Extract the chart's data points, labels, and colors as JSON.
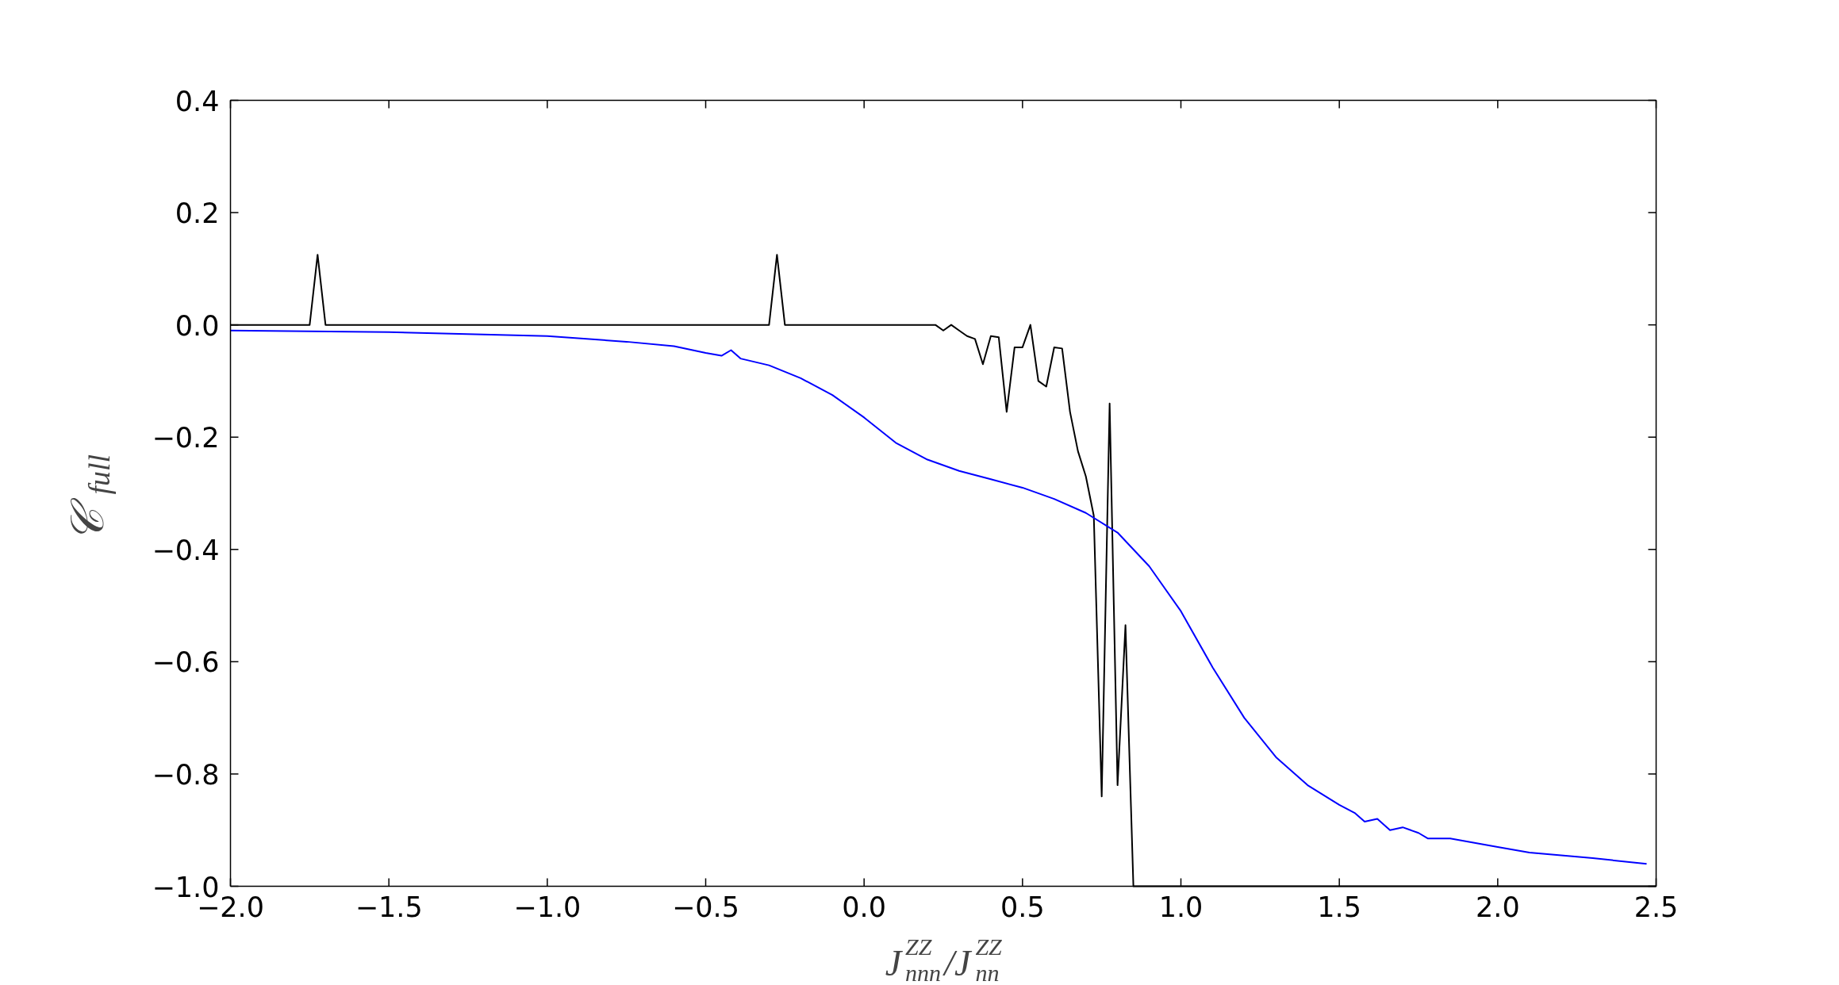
{
  "chart_data": {
    "type": "line",
    "xlabel": "J$^{ZZ}$$_{nnn}$/J$^{ZZ}$$_{nn}$",
    "ylabel": "𝒞$_{full}$",
    "xlim": [
      -2.0,
      2.5
    ],
    "ylim": [
      -1.0,
      0.4
    ],
    "xticks": [
      {
        "value": -2.0,
        "label": "−2.0"
      },
      {
        "value": -1.5,
        "label": "−1.5"
      },
      {
        "value": -1.0,
        "label": "−1.0"
      },
      {
        "value": -0.5,
        "label": "−0.5"
      },
      {
        "value": 0.0,
        "label": "0.0"
      },
      {
        "value": 0.5,
        "label": "0.5"
      },
      {
        "value": 1.0,
        "label": "1.0"
      },
      {
        "value": 1.5,
        "label": "1.5"
      },
      {
        "value": 2.0,
        "label": "2.0"
      },
      {
        "value": 2.5,
        "label": "2.5"
      }
    ],
    "yticks": [
      {
        "value": -1.0,
        "label": "−1.0"
      },
      {
        "value": -0.8,
        "label": "−0.8"
      },
      {
        "value": -0.6,
        "label": "−0.6"
      },
      {
        "value": -0.4,
        "label": "−0.4"
      },
      {
        "value": -0.2,
        "label": "−0.2"
      },
      {
        "value": 0.0,
        "label": "0.0"
      },
      {
        "value": 0.2,
        "label": "0.2"
      },
      {
        "value": 0.4,
        "label": "0.4"
      }
    ],
    "grid": false,
    "marker": "none",
    "line_style": "solid",
    "series": [
      {
        "color": "#000000",
        "x": [
          -2.0,
          -1.75,
          -1.725,
          -1.7,
          -0.3,
          -0.275,
          -0.25,
          0.225,
          0.25,
          0.275,
          0.3,
          0.325,
          0.35,
          0.375,
          0.4,
          0.425,
          0.45,
          0.475,
          0.5,
          0.525,
          0.55,
          0.575,
          0.6,
          0.625,
          0.65,
          0.675,
          0.7,
          0.725,
          0.75,
          0.775,
          0.8,
          0.825,
          0.85,
          2.5
        ],
        "values": [
          0.0,
          0.0,
          0.125,
          0.0,
          0.0,
          0.125,
          0.0,
          0.0,
          -0.01,
          0.0,
          -0.01,
          -0.02,
          -0.025,
          -0.07,
          -0.02,
          -0.022,
          -0.155,
          -0.04,
          -0.04,
          0.0,
          -0.1,
          -0.11,
          -0.04,
          -0.042,
          -0.155,
          -0.225,
          -0.27,
          -0.34,
          -0.84,
          -0.14,
          -0.82,
          -0.535,
          -1.0,
          -1.0
        ]
      },
      {
        "color": "#0000ff",
        "x": [
          -2.0,
          -1.5,
          -1.0,
          -0.75,
          -0.6,
          -0.5,
          -0.45,
          -0.42,
          -0.39,
          -0.3,
          -0.2,
          -0.1,
          0.0,
          0.1,
          0.2,
          0.3,
          0.4,
          0.5,
          0.6,
          0.7,
          0.8,
          0.9,
          1.0,
          1.1,
          1.2,
          1.3,
          1.4,
          1.5,
          1.55,
          1.58,
          1.62,
          1.66,
          1.7,
          1.75,
          1.78,
          1.85,
          2.0,
          2.1,
          2.2,
          2.3,
          2.47
        ],
        "values": [
          -0.01,
          -0.013,
          -0.02,
          -0.03,
          -0.038,
          -0.05,
          -0.055,
          -0.045,
          -0.06,
          -0.072,
          -0.095,
          -0.125,
          -0.165,
          -0.21,
          -0.24,
          -0.26,
          -0.275,
          -0.29,
          -0.31,
          -0.335,
          -0.37,
          -0.43,
          -0.51,
          -0.61,
          -0.7,
          -0.77,
          -0.82,
          -0.855,
          -0.87,
          -0.885,
          -0.88,
          -0.9,
          -0.895,
          -0.905,
          -0.915,
          -0.915,
          -0.93,
          -0.94,
          -0.945,
          -0.95,
          -0.96
        ]
      }
    ]
  }
}
